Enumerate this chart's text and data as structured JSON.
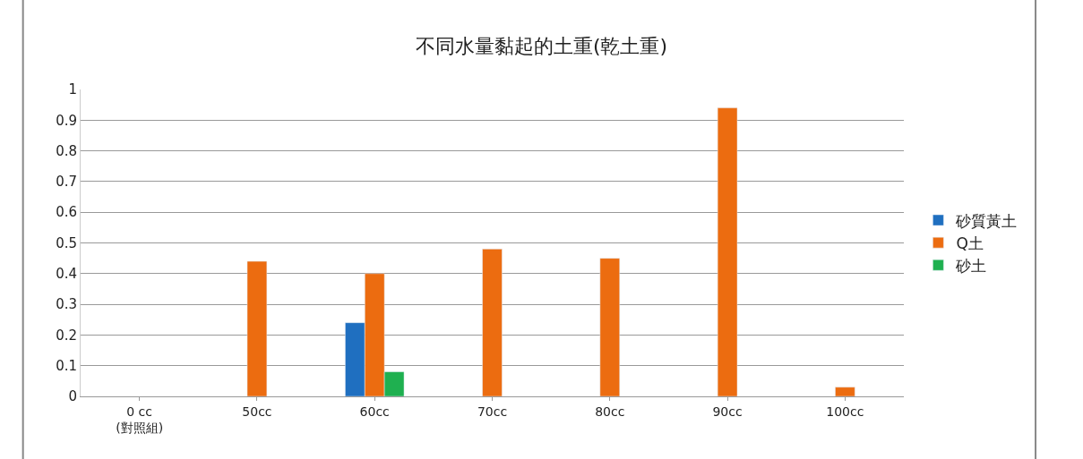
{
  "chart_data": {
    "type": "bar",
    "title": "不同水量黏起的土重(乾土重)",
    "categories": [
      "0 cc\n(對照組)",
      "50cc",
      "60cc",
      "70cc",
      "80cc",
      "90cc",
      "100cc"
    ],
    "series": [
      {
        "name": "砂質黃土",
        "color": "#1f6fc0",
        "values": [
          null,
          null,
          0.24,
          null,
          null,
          null,
          null
        ]
      },
      {
        "name": "Q土",
        "color": "#ec6c10",
        "values": [
          null,
          0.44,
          0.4,
          0.48,
          0.45,
          0.94,
          0.03
        ]
      },
      {
        "name": "砂土",
        "color": "#1fb050",
        "values": [
          null,
          null,
          0.08,
          null,
          null,
          null,
          null
        ]
      }
    ],
    "ylim": [
      0,
      1
    ],
    "yticks": [
      0,
      0.1,
      0.2,
      0.3,
      0.4,
      0.5,
      0.6,
      0.7,
      0.8,
      0.9,
      1
    ],
    "grid": "y",
    "legend": "right"
  }
}
